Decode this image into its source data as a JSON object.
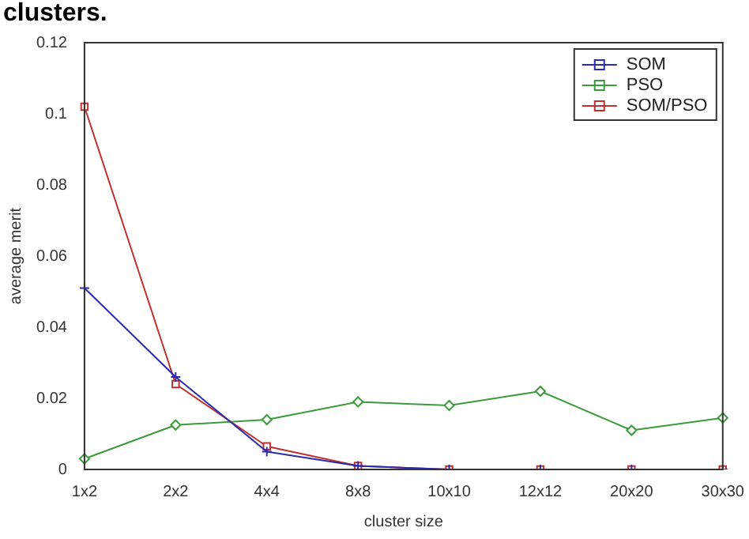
{
  "chart_data": {
    "type": "line",
    "annotations": [
      "clusters."
    ],
    "xlabel": "cluster size",
    "ylabel": "average merit",
    "categories": [
      "1x2",
      "2x2",
      "4x4",
      "8x8",
      "10x10",
      "12x12",
      "20x20",
      "30x30"
    ],
    "ylim": [
      0,
      0.12
    ],
    "yticks": [
      0,
      0.02,
      0.04,
      0.06,
      0.08,
      0.1,
      0.12
    ],
    "grid": false,
    "legend": "top right",
    "line_style": "solid",
    "series": [
      {
        "name": "SOM",
        "color": "#2b2bb0",
        "marker": "cross",
        "values": [
          0.051,
          0.026,
          0.005,
          0.001,
          0,
          0,
          0,
          0
        ]
      },
      {
        "name": "PSO",
        "color": "#3d9a3d",
        "marker": "diamond",
        "values": [
          0.003,
          0.0125,
          0.014,
          0.019,
          0.018,
          0.022,
          0.011,
          0.0145
        ]
      },
      {
        "name": "SOM/PSO",
        "color": "#c03030",
        "marker": "square",
        "values": [
          0.102,
          0.024,
          0.0065,
          0.001,
          0,
          0,
          0,
          0
        ]
      }
    ]
  }
}
